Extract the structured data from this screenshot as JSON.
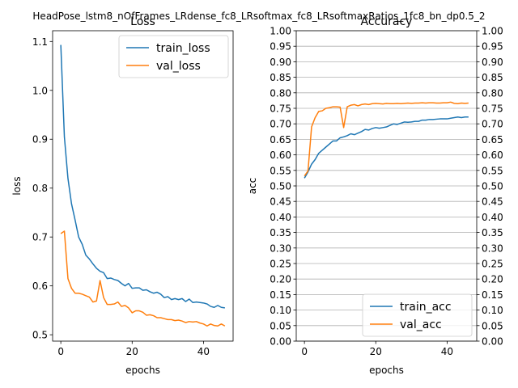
{
  "suptitle": "HeadPose_lstm8_nOfFrames_LRdense_fc8_LRsoftmax_fc8_LRsoftmaxRatios_1fc8_bn_dp0.5_2",
  "colors": {
    "train": "#1f77b4",
    "val": "#ff7f0e",
    "grid": "#b0b0b0"
  },
  "chart_data": [
    {
      "type": "line",
      "title": "Loss",
      "xlabel": "epochs",
      "ylabel": "loss",
      "xlim": [
        -2.3,
        48.3
      ],
      "ylim": [
        0.487,
        1.122
      ],
      "xticks": [
        0,
        20,
        40
      ],
      "yticks": [
        0.5,
        0.6,
        0.7,
        0.8,
        0.9,
        1.0,
        1.1
      ],
      "ytick_labels": [
        "0.5",
        "0.6",
        "0.7",
        "0.8",
        "0.9",
        "1.0",
        "1.1"
      ],
      "grid": false,
      "legend_position": "upper-right",
      "x": [
        0,
        1,
        2,
        3,
        4,
        5,
        6,
        7,
        8,
        9,
        10,
        11,
        12,
        13,
        14,
        15,
        16,
        17,
        18,
        19,
        20,
        21,
        22,
        23,
        24,
        25,
        26,
        27,
        28,
        29,
        30,
        31,
        32,
        33,
        34,
        35,
        36,
        37,
        38,
        39,
        40,
        41,
        42,
        43,
        44,
        45,
        46
      ],
      "series": [
        {
          "name": "train_loss",
          "color": "#1f77b4",
          "values": [
            1.093,
            0.905,
            0.82,
            0.768,
            0.735,
            0.7,
            0.685,
            0.663,
            0.655,
            0.645,
            0.636,
            0.63,
            0.627,
            0.615,
            0.616,
            0.613,
            0.611,
            0.605,
            0.6,
            0.605,
            0.595,
            0.596,
            0.596,
            0.591,
            0.592,
            0.588,
            0.585,
            0.587,
            0.583,
            0.576,
            0.578,
            0.572,
            0.574,
            0.572,
            0.574,
            0.568,
            0.573,
            0.566,
            0.567,
            0.566,
            0.565,
            0.563,
            0.558,
            0.556,
            0.56,
            0.556,
            0.555
          ]
        },
        {
          "name": "val_loss",
          "color": "#ff7f0e",
          "values": [
            0.707,
            0.712,
            0.615,
            0.595,
            0.585,
            0.585,
            0.583,
            0.58,
            0.577,
            0.567,
            0.569,
            0.611,
            0.576,
            0.562,
            0.562,
            0.563,
            0.567,
            0.558,
            0.56,
            0.555,
            0.545,
            0.549,
            0.549,
            0.546,
            0.54,
            0.541,
            0.539,
            0.535,
            0.535,
            0.533,
            0.531,
            0.531,
            0.529,
            0.53,
            0.528,
            0.525,
            0.527,
            0.526,
            0.527,
            0.524,
            0.522,
            0.518,
            0.522,
            0.519,
            0.518,
            0.522,
            0.518
          ]
        }
      ]
    },
    {
      "type": "line",
      "title": "Accuracy",
      "xlabel": "epochs",
      "ylabel": "acc",
      "xlim": [
        -2.3,
        48.3
      ],
      "ylim": [
        0.0,
        1.0
      ],
      "xticks": [
        0,
        20,
        40
      ],
      "yticks": [
        0.0,
        0.05,
        0.1,
        0.15,
        0.2,
        0.25,
        0.3,
        0.35,
        0.4,
        0.45,
        0.5,
        0.55,
        0.6,
        0.65,
        0.7,
        0.75,
        0.8,
        0.85,
        0.9,
        0.95,
        1.0
      ],
      "ytick_labels": [
        "0.00",
        "0.05",
        "0.10",
        "0.15",
        "0.20",
        "0.25",
        "0.30",
        "0.35",
        "0.40",
        "0.45",
        "0.50",
        "0.55",
        "0.60",
        "0.65",
        "0.70",
        "0.75",
        "0.80",
        "0.85",
        "0.90",
        "0.95",
        "1.00"
      ],
      "grid": true,
      "twin_right_axis": true,
      "legend_position": "lower-right",
      "x": [
        0,
        1,
        2,
        3,
        4,
        5,
        6,
        7,
        8,
        9,
        10,
        11,
        12,
        13,
        14,
        15,
        16,
        17,
        18,
        19,
        20,
        21,
        22,
        23,
        24,
        25,
        26,
        27,
        28,
        29,
        30,
        31,
        32,
        33,
        34,
        35,
        36,
        37,
        38,
        39,
        40,
        41,
        42,
        43,
        44,
        45,
        46
      ],
      "series": [
        {
          "name": "train_acc",
          "color": "#1f77b4",
          "values": [
            0.525,
            0.545,
            0.57,
            0.585,
            0.605,
            0.615,
            0.625,
            0.635,
            0.645,
            0.645,
            0.655,
            0.658,
            0.662,
            0.668,
            0.665,
            0.67,
            0.675,
            0.682,
            0.68,
            0.685,
            0.688,
            0.686,
            0.688,
            0.69,
            0.695,
            0.7,
            0.698,
            0.702,
            0.706,
            0.705,
            0.706,
            0.708,
            0.708,
            0.712,
            0.712,
            0.714,
            0.714,
            0.715,
            0.716,
            0.716,
            0.716,
            0.718,
            0.72,
            0.722,
            0.72,
            0.722,
            0.722
          ]
        },
        {
          "name": "val_acc",
          "color": "#ff7f0e",
          "values": [
            0.532,
            0.548,
            0.69,
            0.72,
            0.74,
            0.742,
            0.75,
            0.752,
            0.755,
            0.755,
            0.754,
            0.688,
            0.755,
            0.76,
            0.762,
            0.758,
            0.762,
            0.764,
            0.762,
            0.765,
            0.766,
            0.765,
            0.764,
            0.766,
            0.765,
            0.765,
            0.766,
            0.765,
            0.766,
            0.767,
            0.766,
            0.767,
            0.767,
            0.768,
            0.767,
            0.768,
            0.768,
            0.767,
            0.767,
            0.768,
            0.768,
            0.77,
            0.766,
            0.765,
            0.767,
            0.766,
            0.767
          ]
        }
      ]
    }
  ]
}
